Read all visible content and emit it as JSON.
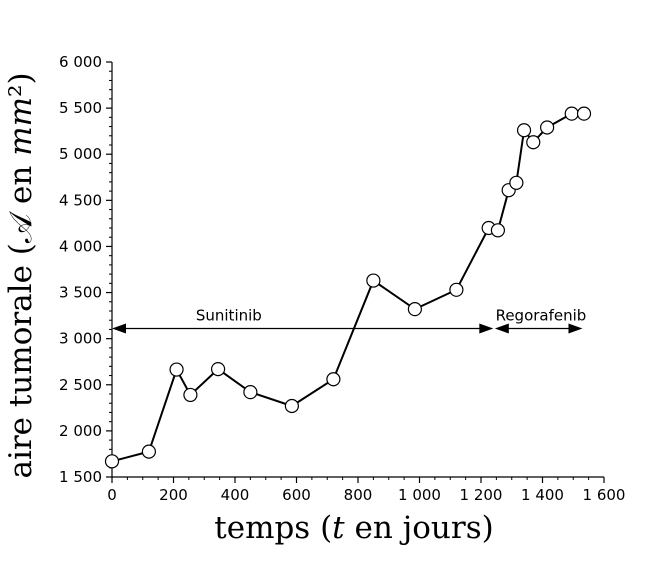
{
  "chart_data": {
    "type": "line",
    "xlabel": "temps (𝑡 en jours)",
    "ylabel": "aire tumorale (𝒜 en 𝑚𝑚²)",
    "xlim": [
      0,
      1600
    ],
    "ylim": [
      1500,
      6000
    ],
    "xticks": [
      0,
      200,
      400,
      600,
      800,
      1000,
      1200,
      1400,
      1600
    ],
    "xtick_labels": [
      "0",
      "200",
      "400",
      "600",
      "800",
      "1 000",
      "1 200",
      "1 400",
      "1 600"
    ],
    "yticks": [
      1500,
      2000,
      2500,
      3000,
      3500,
      4000,
      4500,
      5000,
      5500,
      6000
    ],
    "ytick_labels": [
      "1 500",
      "2 000",
      "2 500",
      "3 000",
      "3 500",
      "4 000",
      "4 500",
      "5 000",
      "5 500",
      "6 000"
    ],
    "grid": false,
    "series": [
      {
        "x": [
          0,
          120,
          210,
          255,
          345,
          450,
          585,
          720,
          850,
          985,
          1120,
          1225,
          1255,
          1290,
          1315,
          1340,
          1370,
          1415,
          1495,
          1535
        ],
        "y": [
          1670,
          1775,
          2665,
          2390,
          2670,
          2420,
          2270,
          2560,
          3630,
          3320,
          3530,
          4200,
          4175,
          4610,
          4690,
          5260,
          5130,
          5290,
          5440,
          5440
        ]
      }
    ],
    "annotations": [
      {
        "text": "Sunitinib",
        "x_start": 0,
        "x_end": 1240,
        "y": 3110,
        "label_x": 380
      },
      {
        "text": "Regorafenib",
        "x_start": 1245,
        "x_end": 1530,
        "y": 3110,
        "label_x": 1395
      }
    ]
  }
}
